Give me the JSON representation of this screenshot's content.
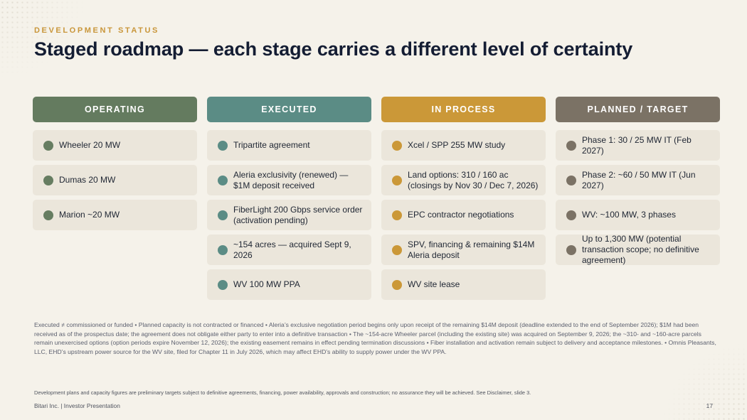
{
  "header": {
    "eyebrow": "DEVELOPMENT STATUS",
    "title": "Staged roadmap — each stage carries a different level of certainty"
  },
  "colors": {
    "operating": "#647b5f",
    "executed": "#5b8c85",
    "in_process": "#cb9838",
    "planned": "#7b7265",
    "accent": "#c9963a"
  },
  "columns": [
    {
      "label": "OPERATING",
      "items": [
        "Wheeler 20 MW",
        "Dumas 20 MW",
        "Marion ~20 MW"
      ]
    },
    {
      "label": "EXECUTED",
      "items": [
        "Tripartite agreement",
        "Aleria exclusivity (renewed) — $1M deposit received",
        "FiberLight 200 Gbps service order (activation pending)",
        "~154 acres — acquired Sept 9, 2026",
        "WV 100 MW PPA"
      ]
    },
    {
      "label": "IN PROCESS",
      "items": [
        "Xcel / SPP 255 MW study",
        "Land options: 310 / 160 ac (closings by Nov 30 / Dec 7, 2026)",
        "EPC contractor negotiations",
        "SPV, financing & remaining $14M Aleria deposit",
        "WV site lease"
      ]
    },
    {
      "label": "PLANNED / TARGET",
      "items": [
        "Phase 1: 30 / 25 MW IT (Feb 2027)",
        "Phase 2: ~60 / 50 MW IT (Jun 2027)",
        "WV: ~100 MW, 3 phases",
        "Up to 1,300 MW (potential transaction scope; no definitive agreement)"
      ]
    }
  ],
  "notes": "Executed ≠ commissioned or funded • Planned capacity is not contracted or financed • Aleria’s exclusive negotiation period begins only upon receipt of the remaining $14M deposit (deadline extended to the end of September 2026); $1M had been received as of the prospectus date; the agreement does not obligate either party to enter into a definitive transaction • The ~154-acre Wheeler parcel (including the existing site) was acquired on September 9, 2026; the ~310- and ~160-acre parcels remain unexercised options (option periods expire November 12, 2026); the existing easement remains in effect pending termination discussions • Fiber installation and activation remain subject to delivery and acceptance milestones. • Omnis Pleasants, LLC, EHD’s upstream power source for the WV site, filed for Chapter 11 in July 2026, which may affect EHD’s ability to supply power under the WV PPA.",
  "disclaimer": "Development plans and capacity figures are preliminary targets subject to definitive agreements, financing, power availability, approvals and construction; no assurance they will be achieved. See Disclaimer, slide 3.",
  "footer": {
    "left": "Bitari Inc.  |  Investor Presentation",
    "page": "17"
  }
}
